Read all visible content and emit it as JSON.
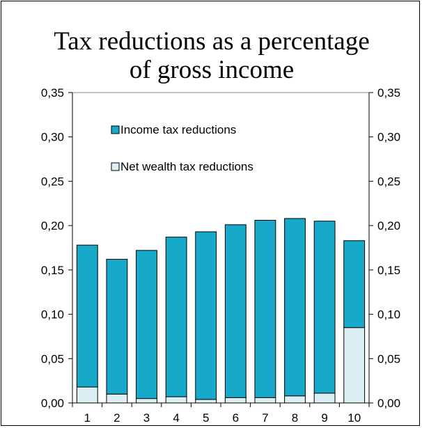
{
  "chart_data": {
    "type": "bar",
    "stacked": true,
    "title_lines": [
      "Tax reductions as a percentage",
      "of gross income"
    ],
    "categories": [
      "1",
      "2",
      "3",
      "4",
      "5",
      "6",
      "7",
      "8",
      "9",
      "10"
    ],
    "series": [
      {
        "name": "Net wealth tax reductions",
        "color": "#dbeef3",
        "values": [
          0.018,
          0.01,
          0.005,
          0.007,
          0.004,
          0.006,
          0.006,
          0.008,
          0.011,
          0.085
        ]
      },
      {
        "name": "Income tax reductions",
        "color": "#17a9c9",
        "values": [
          0.16,
          0.152,
          0.167,
          0.18,
          0.189,
          0.195,
          0.2,
          0.2,
          0.194,
          0.098
        ]
      }
    ],
    "legend_order": [
      "Income tax reductions",
      "Net wealth tax reductions"
    ],
    "ylim": [
      0,
      0.35
    ],
    "yticks": [
      "0,00",
      "0,05",
      "0,10",
      "0,15",
      "0,20",
      "0,25",
      "0,30",
      "0,35"
    ],
    "secondary_y_axis": true,
    "grid": false,
    "legend_position": "top-left inside plot"
  }
}
